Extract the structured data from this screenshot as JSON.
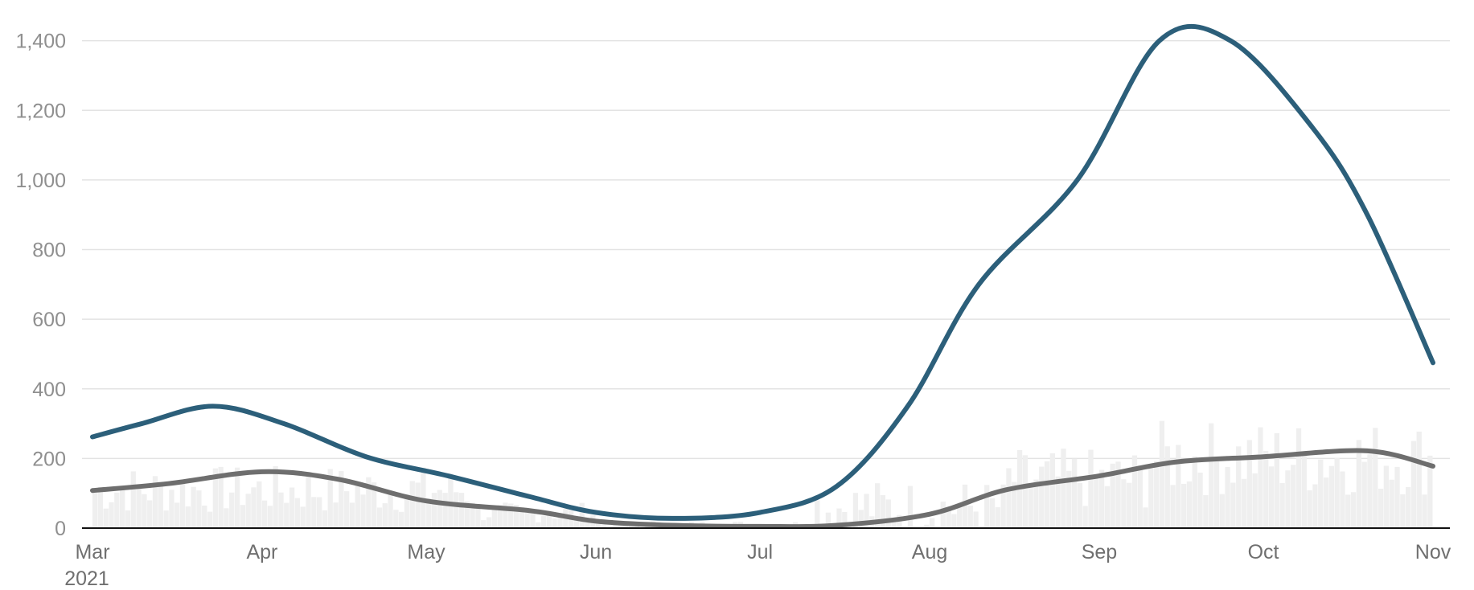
{
  "chart_data": {
    "type": "line",
    "ylim": [
      0,
      1450
    ],
    "grid": true,
    "y_ticks": [
      "0",
      "200",
      "400",
      "600",
      "800",
      "1,000",
      "1,200",
      "1,400"
    ],
    "y_tick_values": [
      0,
      200,
      400,
      600,
      800,
      1000,
      1200,
      1400
    ],
    "x_ticks": [
      {
        "label": "Mar",
        "date": "2021-03-01"
      },
      {
        "label": "Apr",
        "date": "2021-04-01"
      },
      {
        "label": "May",
        "date": "2021-05-01"
      },
      {
        "label": "Jun",
        "date": "2021-06-01"
      },
      {
        "label": "Jul",
        "date": "2021-07-01"
      },
      {
        "label": "Aug",
        "date": "2021-08-01"
      },
      {
        "label": "Sep",
        "date": "2021-09-01"
      },
      {
        "label": "Oct",
        "date": "2021-10-01"
      },
      {
        "label": "Nov",
        "date": "2021-11-01"
      }
    ],
    "x_year_label": "2021",
    "xlim": [
      "2021-03-01",
      "2021-11-01"
    ],
    "series": [
      {
        "type": "line",
        "color": "#2c5f7a",
        "points": [
          [
            "2021-03-01",
            262
          ],
          [
            "2021-03-10",
            300
          ],
          [
            "2021-03-23",
            350
          ],
          [
            "2021-04-05",
            300
          ],
          [
            "2021-04-20",
            205
          ],
          [
            "2021-05-05",
            150
          ],
          [
            "2021-05-20",
            90
          ],
          [
            "2021-06-01",
            45
          ],
          [
            "2021-06-15",
            28
          ],
          [
            "2021-07-01",
            45
          ],
          [
            "2021-07-15",
            120
          ],
          [
            "2021-07-28",
            350
          ],
          [
            "2021-08-10",
            700
          ],
          [
            "2021-08-28",
            1000
          ],
          [
            "2021-09-12",
            1400
          ],
          [
            "2021-09-25",
            1400
          ],
          [
            "2021-10-10",
            1150
          ],
          [
            "2021-10-20",
            900
          ],
          [
            "2021-11-01",
            475
          ]
        ]
      },
      {
        "type": "line",
        "color": "#6e6e6e",
        "points": [
          [
            "2021-03-01",
            108
          ],
          [
            "2021-03-15",
            128
          ],
          [
            "2021-04-01",
            162
          ],
          [
            "2021-04-15",
            140
          ],
          [
            "2021-05-01",
            78
          ],
          [
            "2021-05-20",
            50
          ],
          [
            "2021-06-01",
            20
          ],
          [
            "2021-06-15",
            8
          ],
          [
            "2021-07-01",
            5
          ],
          [
            "2021-07-15",
            8
          ],
          [
            "2021-08-01",
            40
          ],
          [
            "2021-08-15",
            110
          ],
          [
            "2021-09-01",
            150
          ],
          [
            "2021-09-15",
            190
          ],
          [
            "2021-10-01",
            205
          ],
          [
            "2021-10-20",
            222
          ],
          [
            "2021-11-01",
            178
          ]
        ]
      },
      {
        "type": "bar",
        "color": "#efefef",
        "segments": [
          {
            "start": "2021-03-01",
            "end": "2021-05-10",
            "base": 110,
            "amp": 70
          },
          {
            "start": "2021-05-10",
            "end": "2021-06-01",
            "base": 45,
            "amp": 30
          },
          {
            "start": "2021-06-01",
            "end": "2021-07-10",
            "base": 10,
            "amp": 12
          },
          {
            "start": "2021-07-10",
            "end": "2021-08-15",
            "base": 60,
            "amp": 80
          },
          {
            "start": "2021-08-15",
            "end": "2021-09-10",
            "base": 140,
            "amp": 90
          },
          {
            "start": "2021-09-10",
            "end": "2021-11-01",
            "base": 200,
            "amp": 110
          }
        ]
      }
    ]
  }
}
